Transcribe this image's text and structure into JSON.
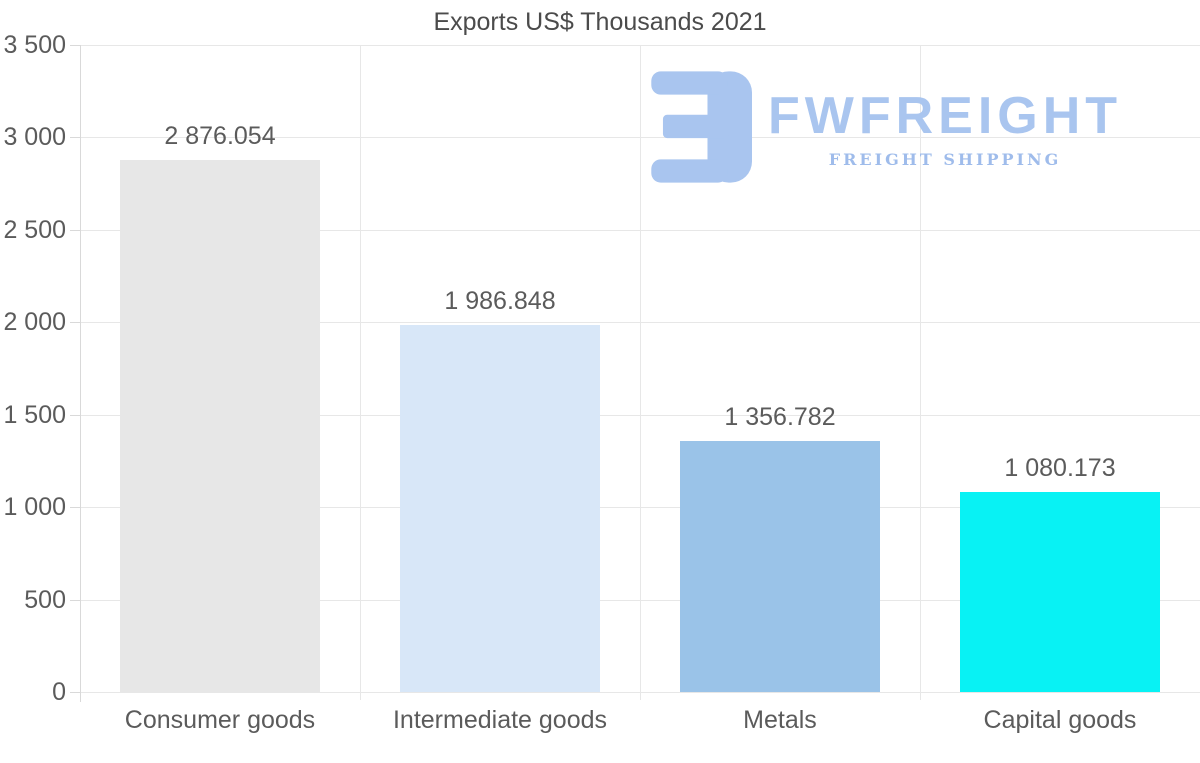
{
  "chart_data": {
    "type": "bar",
    "title": "Exports US$ Thousands 2021",
    "categories": [
      "Consumer goods",
      "Intermediate goods",
      "Metals",
      "Capital goods"
    ],
    "values": [
      2876.054,
      1986.848,
      1356.782,
      1080.173
    ],
    "value_labels": [
      "2 876.054",
      "1 986.848",
      "1 356.782",
      "1 080.173"
    ],
    "bar_colors": [
      "#e7e7e7",
      "#d8e7f8",
      "#9ac3e8",
      "#08f2f4"
    ],
    "xlabel": "",
    "ylabel": "",
    "ylim": [
      0,
      3500
    ],
    "ytick_step": 500,
    "ytick_labels": [
      "0",
      "500",
      "1 000",
      "1 500",
      "2 000",
      "2 500",
      "3 000",
      "3 500"
    ],
    "grid": true,
    "legend": "none"
  },
  "watermark": {
    "brand": "FWFREIGHT",
    "tagline": "FREIGHT SHIPPING",
    "color": "#a9c5ef"
  }
}
